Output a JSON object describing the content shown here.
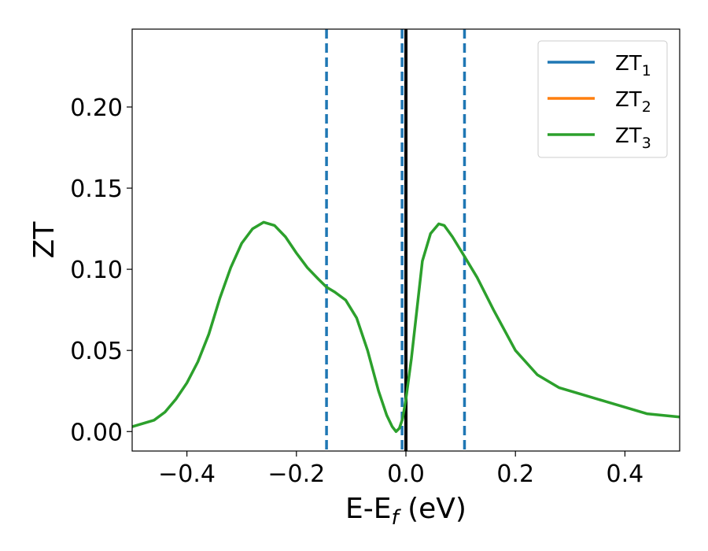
{
  "chart_data": {
    "type": "line",
    "xlabel": "E-E_f (eV)",
    "xlabel_parts": {
      "main": "E-E",
      "sub": "f",
      "unit": " (eV)"
    },
    "ylabel": "ZT",
    "xlim": [
      -0.5,
      0.5
    ],
    "ylim": [
      -0.012,
      0.248
    ],
    "xticks": [
      -0.4,
      -0.2,
      0.0,
      0.2,
      0.4
    ],
    "xtick_labels": [
      "−0.4",
      "−0.2",
      "0.0",
      "0.2",
      "0.4"
    ],
    "yticks": [
      0.0,
      0.05,
      0.1,
      0.15,
      0.2
    ],
    "ytick_labels": [
      "0.00",
      "0.05",
      "0.10",
      "0.15",
      "0.20"
    ],
    "grid": false,
    "legend_position": "top-right",
    "series": [
      {
        "name": "ZT1",
        "label_main": "ZT",
        "label_sub": "1",
        "color": "#1f77b4",
        "x": [],
        "y": []
      },
      {
        "name": "ZT2",
        "label_main": "ZT",
        "label_sub": "2",
        "color": "#ff7f0e",
        "x": [],
        "y": []
      },
      {
        "name": "ZT3",
        "label_main": "ZT",
        "label_sub": "3",
        "color": "#2ca02c",
        "x": [
          -0.5,
          -0.46,
          -0.44,
          -0.42,
          -0.4,
          -0.38,
          -0.36,
          -0.34,
          -0.32,
          -0.3,
          -0.28,
          -0.26,
          -0.24,
          -0.22,
          -0.2,
          -0.18,
          -0.16,
          -0.145,
          -0.13,
          -0.11,
          -0.09,
          -0.07,
          -0.05,
          -0.035,
          -0.025,
          -0.018,
          -0.012,
          -0.006,
          0.0,
          0.01,
          0.02,
          0.03,
          0.045,
          0.06,
          0.07,
          0.085,
          0.105,
          0.13,
          0.16,
          0.2,
          0.24,
          0.28,
          0.32,
          0.36,
          0.4,
          0.44,
          0.5
        ],
        "y": [
          0.003,
          0.007,
          0.012,
          0.02,
          0.03,
          0.043,
          0.06,
          0.082,
          0.101,
          0.116,
          0.125,
          0.129,
          0.127,
          0.12,
          0.11,
          0.101,
          0.094,
          0.089,
          0.086,
          0.081,
          0.07,
          0.05,
          0.025,
          0.01,
          0.003,
          0.0,
          0.002,
          0.008,
          0.02,
          0.045,
          0.075,
          0.105,
          0.122,
          0.128,
          0.127,
          0.12,
          0.109,
          0.095,
          0.075,
          0.05,
          0.035,
          0.027,
          0.023,
          0.019,
          0.015,
          0.011,
          0.009
        ]
      }
    ],
    "vlines": [
      {
        "x": -0.145,
        "color": "#1f77b4",
        "style": "dashed"
      },
      {
        "x": -0.007,
        "color": "#1f77b4",
        "style": "dashed"
      },
      {
        "x": 0.107,
        "color": "#1f77b4",
        "style": "dashed"
      },
      {
        "x": 0.0,
        "color": "#000000",
        "style": "solid"
      }
    ]
  }
}
